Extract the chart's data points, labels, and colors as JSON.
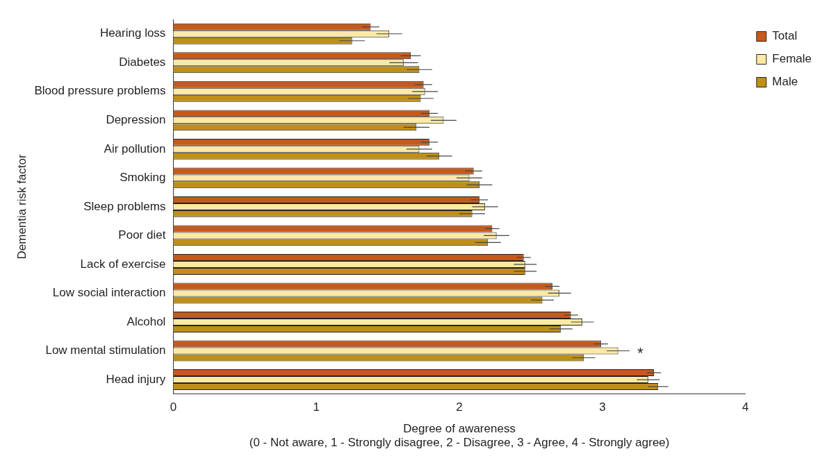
{
  "chart_data": {
    "type": "bar",
    "orientation": "horizontal",
    "xlabel": "Degree of awareness\n(0 - Not aware, 1 - Strongly disagree, 2 - Disagree, 3 - Agree, 4 - Strongly agree)",
    "ylabel": "Dementia risk factor",
    "categories": [
      "Hearing loss",
      "Diabetes",
      "Blood pressure problems",
      "Depression",
      "Air pollution",
      "Smoking",
      "Sleep problems",
      "Poor diet",
      "Lack of exercise",
      "Low social interaction",
      "Alcohol",
      "Low mental stimulation",
      "Head injury"
    ],
    "series": [
      {
        "name": "Total",
        "color": "#c55a1e",
        "values": [
          1.38,
          1.66,
          1.75,
          1.79,
          1.79,
          2.1,
          2.14,
          2.23,
          2.45,
          2.65,
          2.78,
          2.99,
          3.36
        ],
        "errors": [
          0.06,
          0.07,
          0.06,
          0.06,
          0.06,
          0.06,
          0.06,
          0.05,
          0.05,
          0.05,
          0.05,
          0.05,
          0.05
        ]
      },
      {
        "name": "Female",
        "color": "#fde9a4",
        "values": [
          1.51,
          1.61,
          1.76,
          1.89,
          1.72,
          2.07,
          2.18,
          2.26,
          2.46,
          2.7,
          2.86,
          3.11,
          3.32
        ],
        "errors": [
          0.09,
          0.1,
          0.09,
          0.09,
          0.09,
          0.09,
          0.09,
          0.09,
          0.08,
          0.08,
          0.08,
          0.08,
          0.08
        ]
      },
      {
        "name": "Male",
        "color": "#bf9018",
        "values": [
          1.25,
          1.72,
          1.73,
          1.7,
          1.86,
          2.14,
          2.09,
          2.2,
          2.46,
          2.58,
          2.71,
          2.87,
          3.39
        ],
        "errors": [
          0.09,
          0.09,
          0.09,
          0.09,
          0.09,
          0.09,
          0.09,
          0.09,
          0.08,
          0.08,
          0.08,
          0.08,
          0.07
        ]
      }
    ],
    "xlim": [
      0,
      4
    ],
    "xticks": [
      0,
      1,
      2,
      3,
      4
    ],
    "grid": false,
    "legend": "top right",
    "annotations": [
      {
        "text": "*",
        "x": 3.11,
        "y": "Low mental stimulation"
      }
    ]
  }
}
